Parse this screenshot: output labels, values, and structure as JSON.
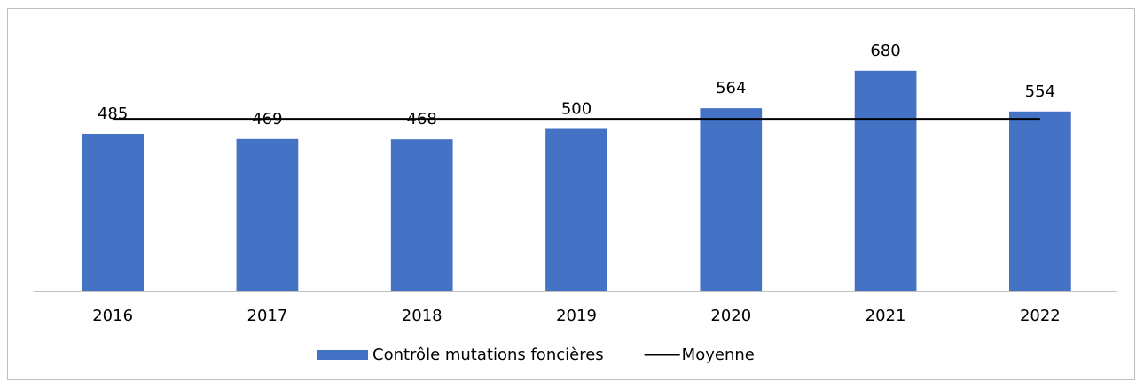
{
  "chart_data": {
    "type": "bar",
    "categories": [
      "2016",
      "2017",
      "2018",
      "2019",
      "2020",
      "2021",
      "2022"
    ],
    "series": [
      {
        "name": "Contrôle mutations foncières",
        "color": "#4472c4",
        "type": "bar",
        "values": [
          485,
          469,
          468,
          500,
          564,
          680,
          554
        ]
      },
      {
        "name": "Moyenne",
        "color": "#000000",
        "type": "line",
        "values": [
          531,
          531,
          531,
          531,
          531,
          531,
          531
        ]
      }
    ],
    "ylim": [
      0,
      800
    ],
    "legend": "bottom"
  }
}
